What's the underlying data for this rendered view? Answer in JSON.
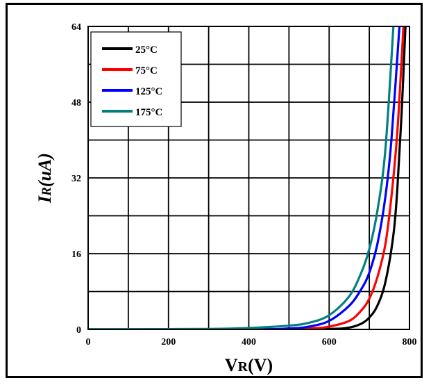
{
  "chart_data": {
    "type": "line",
    "xlabel_main": "V",
    "xlabel_sub": "R",
    "xlabel_unit": "(V)",
    "ylabel_main": "I",
    "ylabel_sub": "R",
    "ylabel_unit": "(uA)",
    "xlim": [
      0,
      800
    ],
    "ylim": [
      0,
      64
    ],
    "xticks": [
      0,
      200,
      400,
      600,
      800
    ],
    "yticks": [
      0,
      16,
      32,
      48,
      64
    ],
    "grid": true,
    "legend_position": "top-left",
    "series": [
      {
        "name": "25°C",
        "color": "#000000",
        "points": [
          [
            0,
            0
          ],
          [
            400,
            0
          ],
          [
            600,
            0.1
          ],
          [
            650,
            0.4
          ],
          [
            680,
            1.2
          ],
          [
            700,
            2.5
          ],
          [
            720,
            5
          ],
          [
            740,
            10
          ],
          [
            760,
            20
          ],
          [
            770,
            30
          ],
          [
            780,
            45
          ],
          [
            790,
            64
          ]
        ]
      },
      {
        "name": "75°C",
        "color": "#ff0000",
        "points": [
          [
            0,
            0
          ],
          [
            400,
            0
          ],
          [
            550,
            0.2
          ],
          [
            600,
            0.6
          ],
          [
            650,
            1.8
          ],
          [
            680,
            4
          ],
          [
            700,
            6.5
          ],
          [
            720,
            11
          ],
          [
            740,
            18
          ],
          [
            755,
            28
          ],
          [
            770,
            42
          ],
          [
            785,
            64
          ]
        ]
      },
      {
        "name": "125°C",
        "color": "#0000ff",
        "points": [
          [
            0,
            0
          ],
          [
            400,
            0
          ],
          [
            500,
            0.2
          ],
          [
            550,
            0.6
          ],
          [
            600,
            1.8
          ],
          [
            650,
            5
          ],
          [
            680,
            8.5
          ],
          [
            700,
            12
          ],
          [
            720,
            18
          ],
          [
            740,
            28
          ],
          [
            755,
            40
          ],
          [
            775,
            64
          ]
        ]
      },
      {
        "name": "175°C",
        "color": "#008080",
        "points": [
          [
            0,
            0
          ],
          [
            150,
            0.05
          ],
          [
            300,
            0.1
          ],
          [
            400,
            0.3
          ],
          [
            500,
            0.8
          ],
          [
            550,
            1.4
          ],
          [
            600,
            3
          ],
          [
            650,
            7
          ],
          [
            680,
            12
          ],
          [
            700,
            17
          ],
          [
            720,
            25
          ],
          [
            740,
            38
          ],
          [
            760,
            64
          ]
        ]
      }
    ]
  }
}
